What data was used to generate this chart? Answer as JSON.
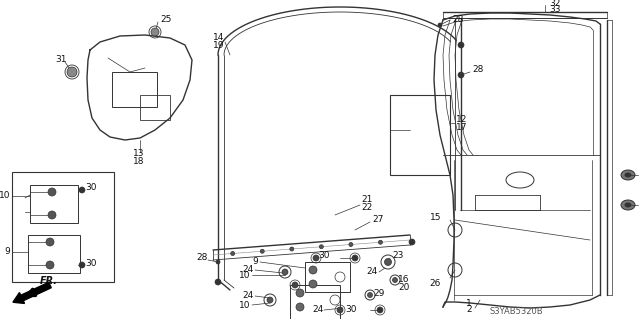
{
  "bg_color": "#ffffff",
  "diagram_code": "S3YAB5320B",
  "gray": "#333333",
  "label_fs": 6.0
}
